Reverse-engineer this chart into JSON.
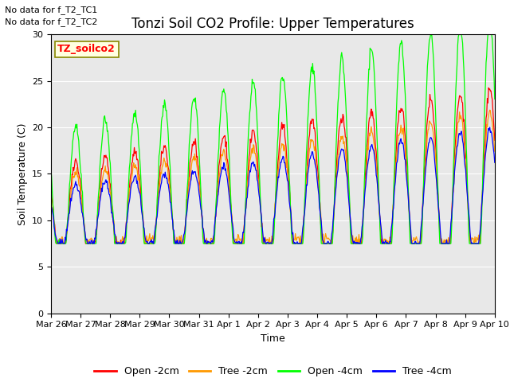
{
  "title": "Tonzi Soil CO2 Profile: Upper Temperatures",
  "xlabel": "Time",
  "ylabel": "Soil Temperature (C)",
  "ylim": [
    0,
    30
  ],
  "no_data_notes": [
    "No data for f_T2_TC1",
    "No data for f_T2_TC2"
  ],
  "station_label": "TZ_soilco2",
  "x_tick_labels": [
    "Mar 26",
    "Mar 27",
    "Mar 28",
    "Mar 29",
    "Mar 30",
    "Mar 31",
    "Apr 1",
    "Apr 2",
    "Apr 3",
    "Apr 4",
    "Apr 5",
    "Apr 6",
    "Apr 7",
    "Apr 8",
    "Apr 9",
    "Apr 10"
  ],
  "legend_labels": [
    "Open -2cm",
    "Tree -2cm",
    "Open -4cm",
    "Tree -4cm"
  ],
  "line_colors": [
    "#ff0000",
    "#ff9900",
    "#00ff00",
    "#0000ff"
  ],
  "plot_bg": "#e8e8e8",
  "fig_bg": "#ffffff",
  "title_fontsize": 12,
  "axis_fontsize": 9,
  "tick_fontsize": 8,
  "legend_fontsize": 9,
  "note_fontsize": 8,
  "station_fontsize": 9
}
